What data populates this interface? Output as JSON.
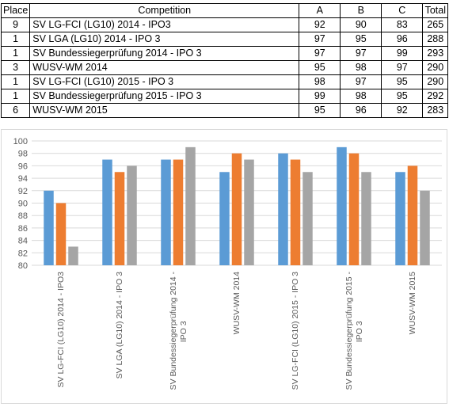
{
  "table": {
    "headers": {
      "place": "Place",
      "competition": "Competition",
      "a": "A",
      "b": "B",
      "c": "C",
      "total": "Total"
    },
    "rows": [
      {
        "place": "9",
        "competition": "SV LG-FCI (LG10) 2014 - IPO3",
        "a": "92",
        "b": "90",
        "c": "83",
        "total": "265"
      },
      {
        "place": "1",
        "competition": "SV LGA (LG10) 2014 - IPO 3",
        "a": "97",
        "b": "95",
        "c": "96",
        "total": "288"
      },
      {
        "place": "1",
        "competition": "SV Bundessiegerprüfung 2014 - IPO 3",
        "a": "97",
        "b": "97",
        "c": "99",
        "total": "293"
      },
      {
        "place": "3",
        "competition": "WUSV-WM 2014",
        "a": "95",
        "b": "98",
        "c": "97",
        "total": "290"
      },
      {
        "place": "1",
        "competition": "SV LG-FCI (LG10) 2015 - IPO 3",
        "a": "98",
        "b": "97",
        "c": "95",
        "total": "290"
      },
      {
        "place": "1",
        "competition": "SV Bundessiegerprüfung 2015 - IPO 3",
        "a": "99",
        "b": "98",
        "c": "95",
        "total": "292"
      },
      {
        "place": "6",
        "competition": "WUSV-WM 2015",
        "a": "95",
        "b": "96",
        "c": "92",
        "total": "283"
      }
    ]
  },
  "chart_data": {
    "type": "bar",
    "categories": [
      "SV LG-FCI (LG10) 2014 - IPO3",
      "SV LGA (LG10) 2014 - IPO 3",
      "SV Bundessiegerprüfung 2014 - IPO 3",
      "WUSV-WM 2014",
      "SV LG-FCI (LG10) 2015 - IPO 3",
      "SV Bundessiegerprüfung 2015 - IPO 3",
      "WUSV-WM 2015"
    ],
    "series": [
      {
        "values": [
          92,
          97,
          97,
          95,
          98,
          99,
          95
        ],
        "color": "#5b9bd5"
      },
      {
        "values": [
          90,
          95,
          97,
          98,
          97,
          98,
          96
        ],
        "color": "#ed7d31"
      },
      {
        "values": [
          83,
          96,
          99,
          97,
          95,
          95,
          92
        ],
        "color": "#a5a5a5"
      }
    ],
    "yticks": [
      "80",
      "82",
      "84",
      "86",
      "88",
      "90",
      "92",
      "94",
      "96",
      "98",
      "100"
    ],
    "ylim": [
      80,
      100
    ],
    "grid": true,
    "legend": "none",
    "gridline_color": "#d9d9d9",
    "tick_label_color": "#595959"
  }
}
